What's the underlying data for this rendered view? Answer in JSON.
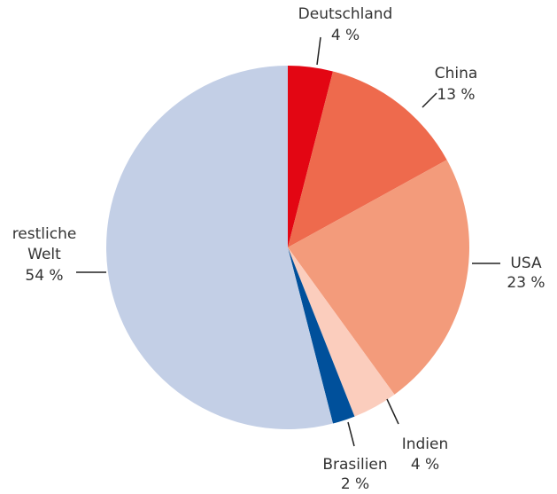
{
  "chart_data": {
    "type": "pie",
    "categories": [
      "Deutschland",
      "China",
      "USA",
      "Indien",
      "Brasilien",
      "restliche Welt"
    ],
    "values": [
      4,
      13,
      23,
      4,
      2,
      54
    ],
    "value_labels": [
      "4 %",
      "13 %",
      "23 %",
      "4 %",
      "2 %",
      "54 %"
    ],
    "colors": [
      "#e30613",
      "#ee6a4d",
      "#f39b7b",
      "#fbcdbd",
      "#00509b",
      "#c3cfe6"
    ]
  }
}
